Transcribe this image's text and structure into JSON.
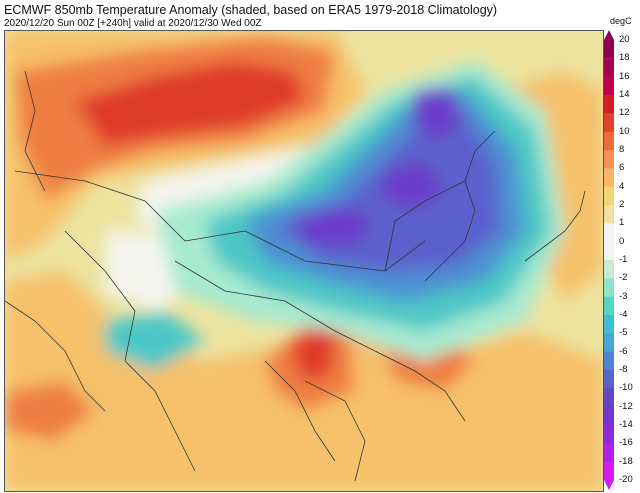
{
  "header": {
    "title": "ECMWF 850mb Temperature Anomaly (shaded, based on ERA5 1979-2018 Climatology)",
    "subtitle": "2020/12/20 Sun 00Z [+240h] valid at 2020/12/30 Wed 00Z"
  },
  "colorbar": {
    "unit": "degC",
    "ticks": [
      "20",
      "18",
      "16",
      "14",
      "12",
      "10",
      "8",
      "6",
      "4",
      "2",
      "1",
      "0",
      "-1",
      "-2",
      "-3",
      "-4",
      "-5",
      "-6",
      "-8",
      "-10",
      "-12",
      "-14",
      "-16",
      "-18",
      "-20"
    ],
    "colors": [
      "#8e0152",
      "#a5004f",
      "#c2004a",
      "#d21c2a",
      "#e0412a",
      "#ee6a3a",
      "#f59155",
      "#f8b46a",
      "#f2d478",
      "#ece3a3",
      "#f2f2f2",
      "#f2f2f2",
      "#c8ebd2",
      "#8fe3c8",
      "#55d5c4",
      "#3ec0cf",
      "#4aa3d6",
      "#4f82d0",
      "#5a63c9",
      "#6247c7",
      "#7336cf",
      "#8e2bdb",
      "#b020e8",
      "#d21cf2"
    ]
  },
  "map_colors": {
    "background": "#ece39f",
    "warm_light": "#f6c16a",
    "warm_mid": "#ef7e43",
    "warm_strong": "#df3b2c",
    "neutral": "#f5f5f0",
    "cool_light": "#a7ead0",
    "cool_mid": "#4ec7c5",
    "cool_strong": "#4d8fd3",
    "cold": "#5b60cc",
    "very_cold": "#6b3ecb",
    "border": "#333333"
  }
}
